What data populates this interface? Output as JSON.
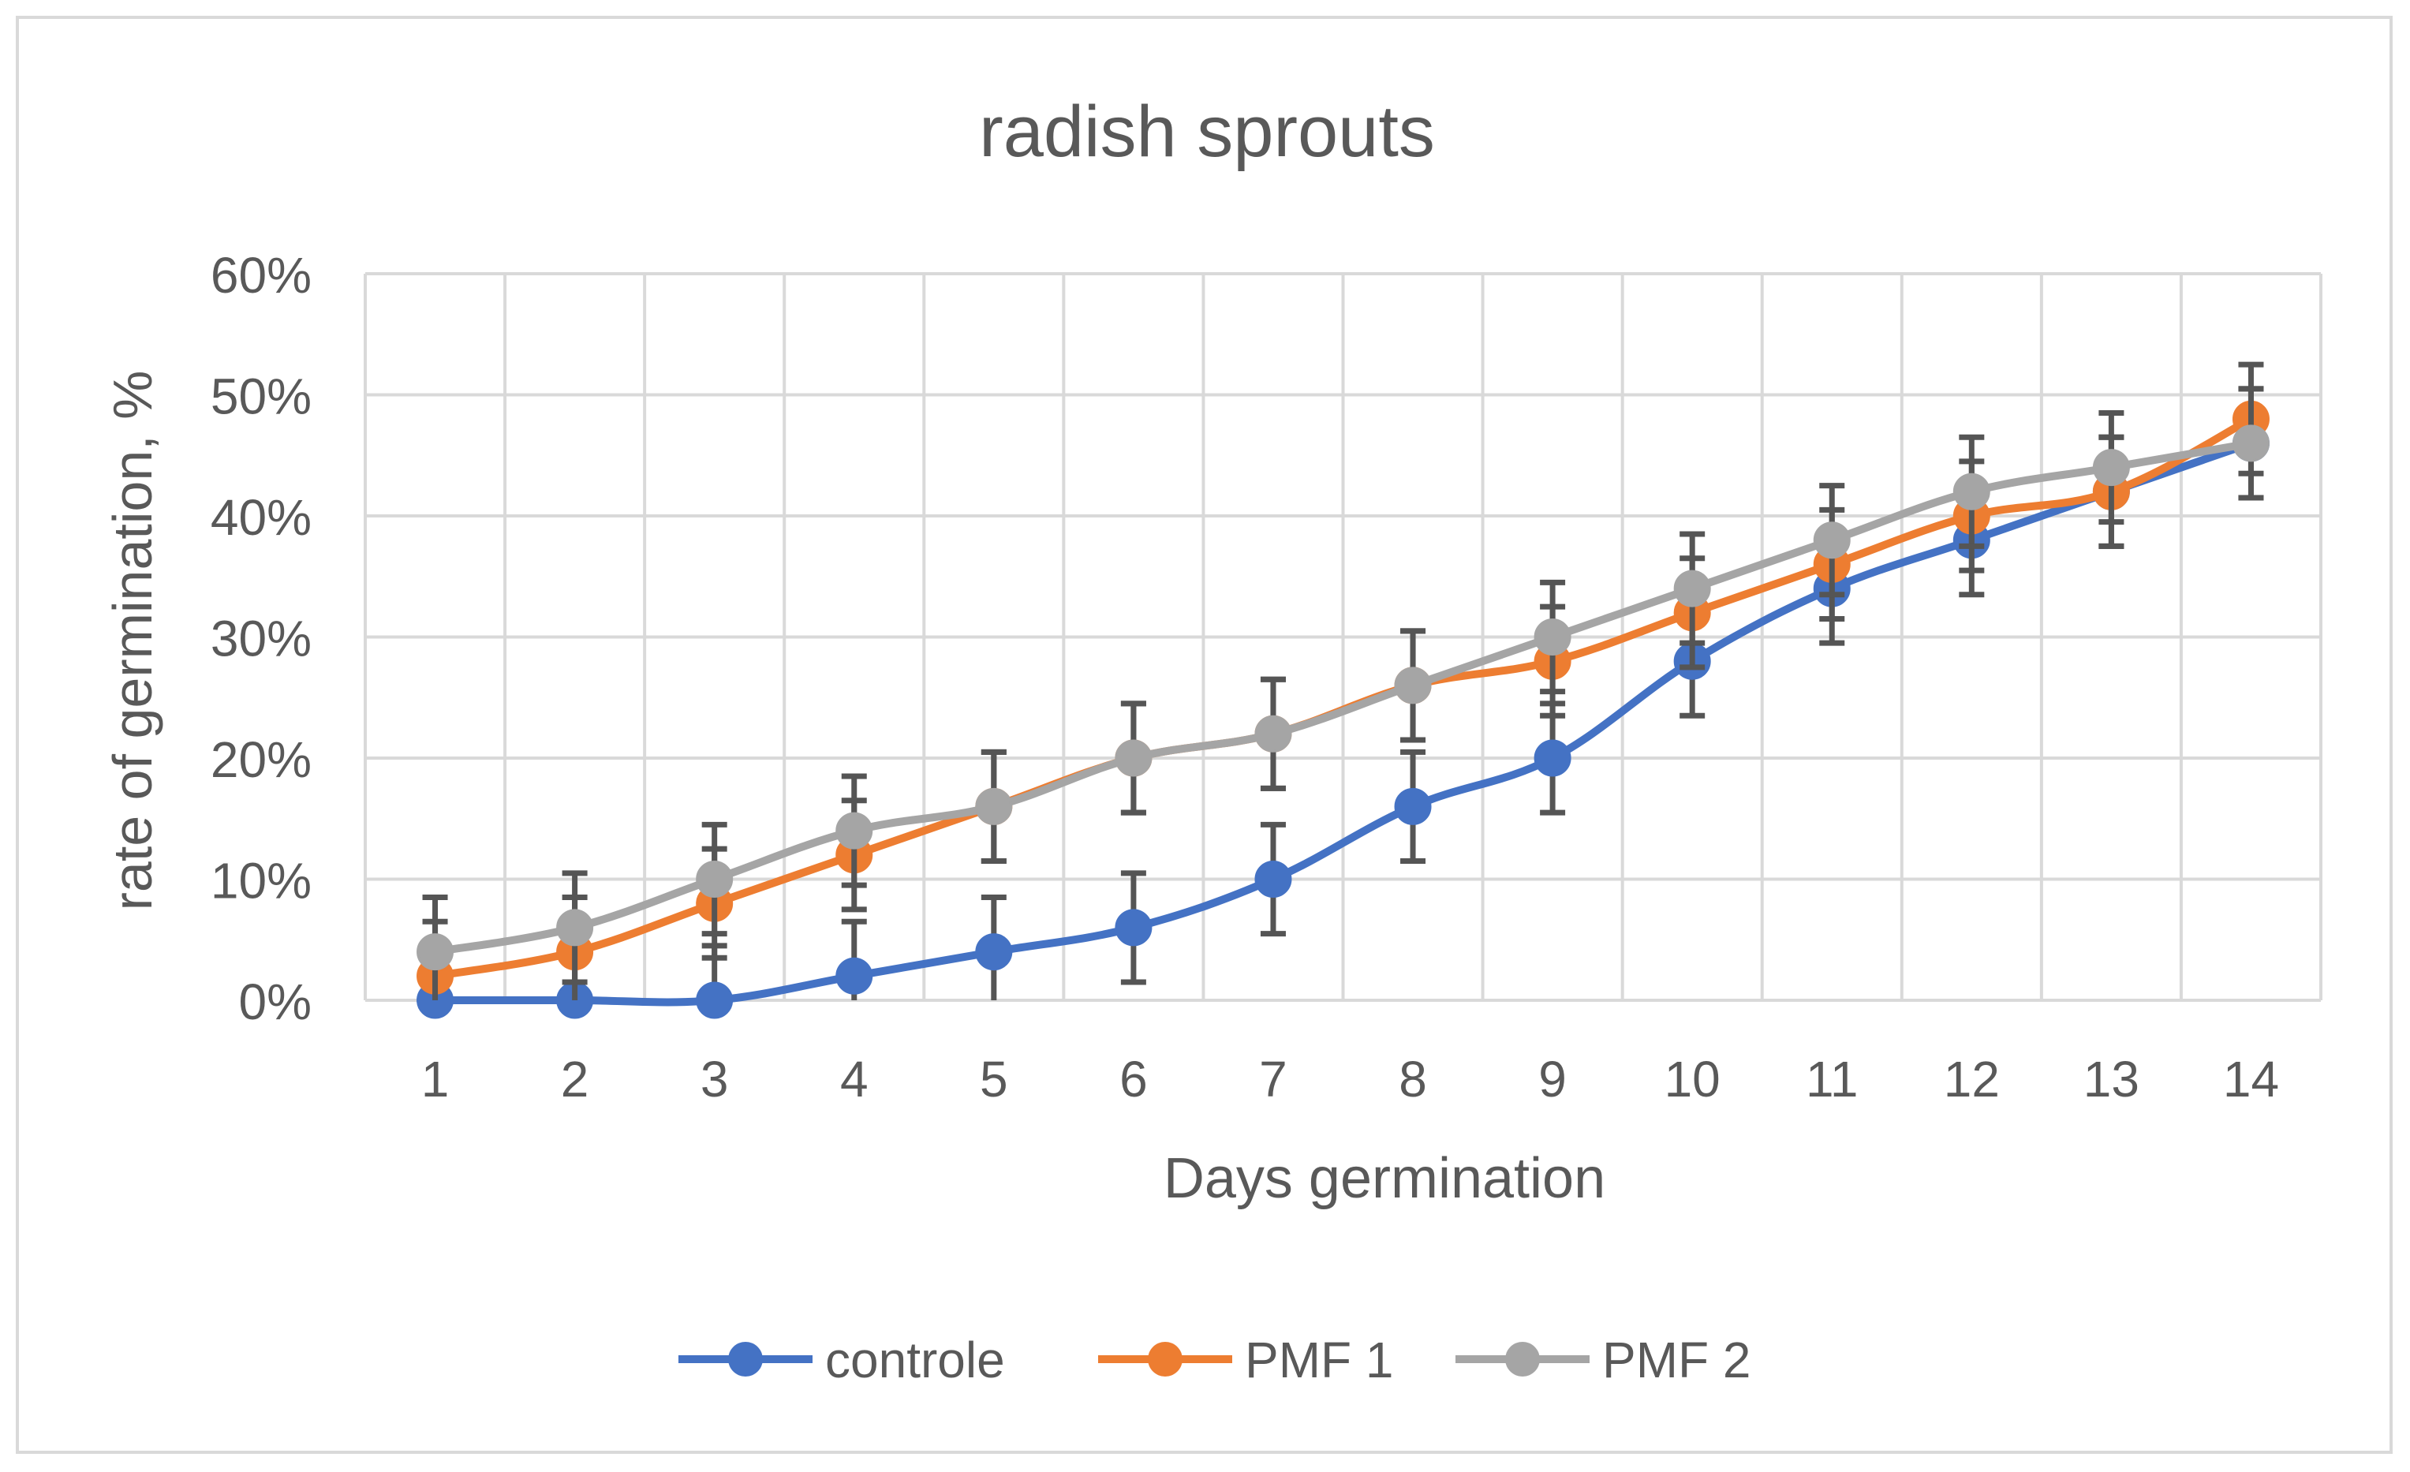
{
  "chart_data": {
    "type": "line",
    "title": "radish sprouts",
    "xlabel": "Days germination",
    "ylabel": "rate of germination, %",
    "categories": [
      "1",
      "2",
      "3",
      "4",
      "5",
      "6",
      "7",
      "8",
      "9",
      "10",
      "11",
      "12",
      "13",
      "14"
    ],
    "ylim": [
      0,
      0.6
    ],
    "yticks": [
      {
        "value": 0,
        "label": "0%"
      },
      {
        "value": 0.1,
        "label": "10%"
      },
      {
        "value": 0.2,
        "label": "20%"
      },
      {
        "value": 0.3,
        "label": "30%"
      },
      {
        "value": 0.4,
        "label": "40%"
      },
      {
        "value": 0.5,
        "label": "50%"
      },
      {
        "value": 0.6,
        "label": "60%"
      }
    ],
    "grid": true,
    "error_bar": 0.045,
    "legend_position": "bottom",
    "series": [
      {
        "name": "controle",
        "color": "#4472c4",
        "values": [
          0,
          0,
          0,
          0.02,
          0.04,
          0.06,
          0.1,
          0.16,
          0.2,
          0.28,
          0.34,
          0.38,
          0.42,
          0.46
        ]
      },
      {
        "name": "PMF 1",
        "color": "#ed7d31",
        "values": [
          0.02,
          0.04,
          0.08,
          0.12,
          0.16,
          0.2,
          0.22,
          0.26,
          0.28,
          0.32,
          0.36,
          0.4,
          0.42,
          0.48
        ]
      },
      {
        "name": "PMF 2",
        "color": "#a5a5a5",
        "values": [
          0.04,
          0.06,
          0.1,
          0.14,
          0.16,
          0.2,
          0.22,
          0.26,
          0.3,
          0.34,
          0.38,
          0.42,
          0.44,
          0.46
        ]
      }
    ]
  }
}
